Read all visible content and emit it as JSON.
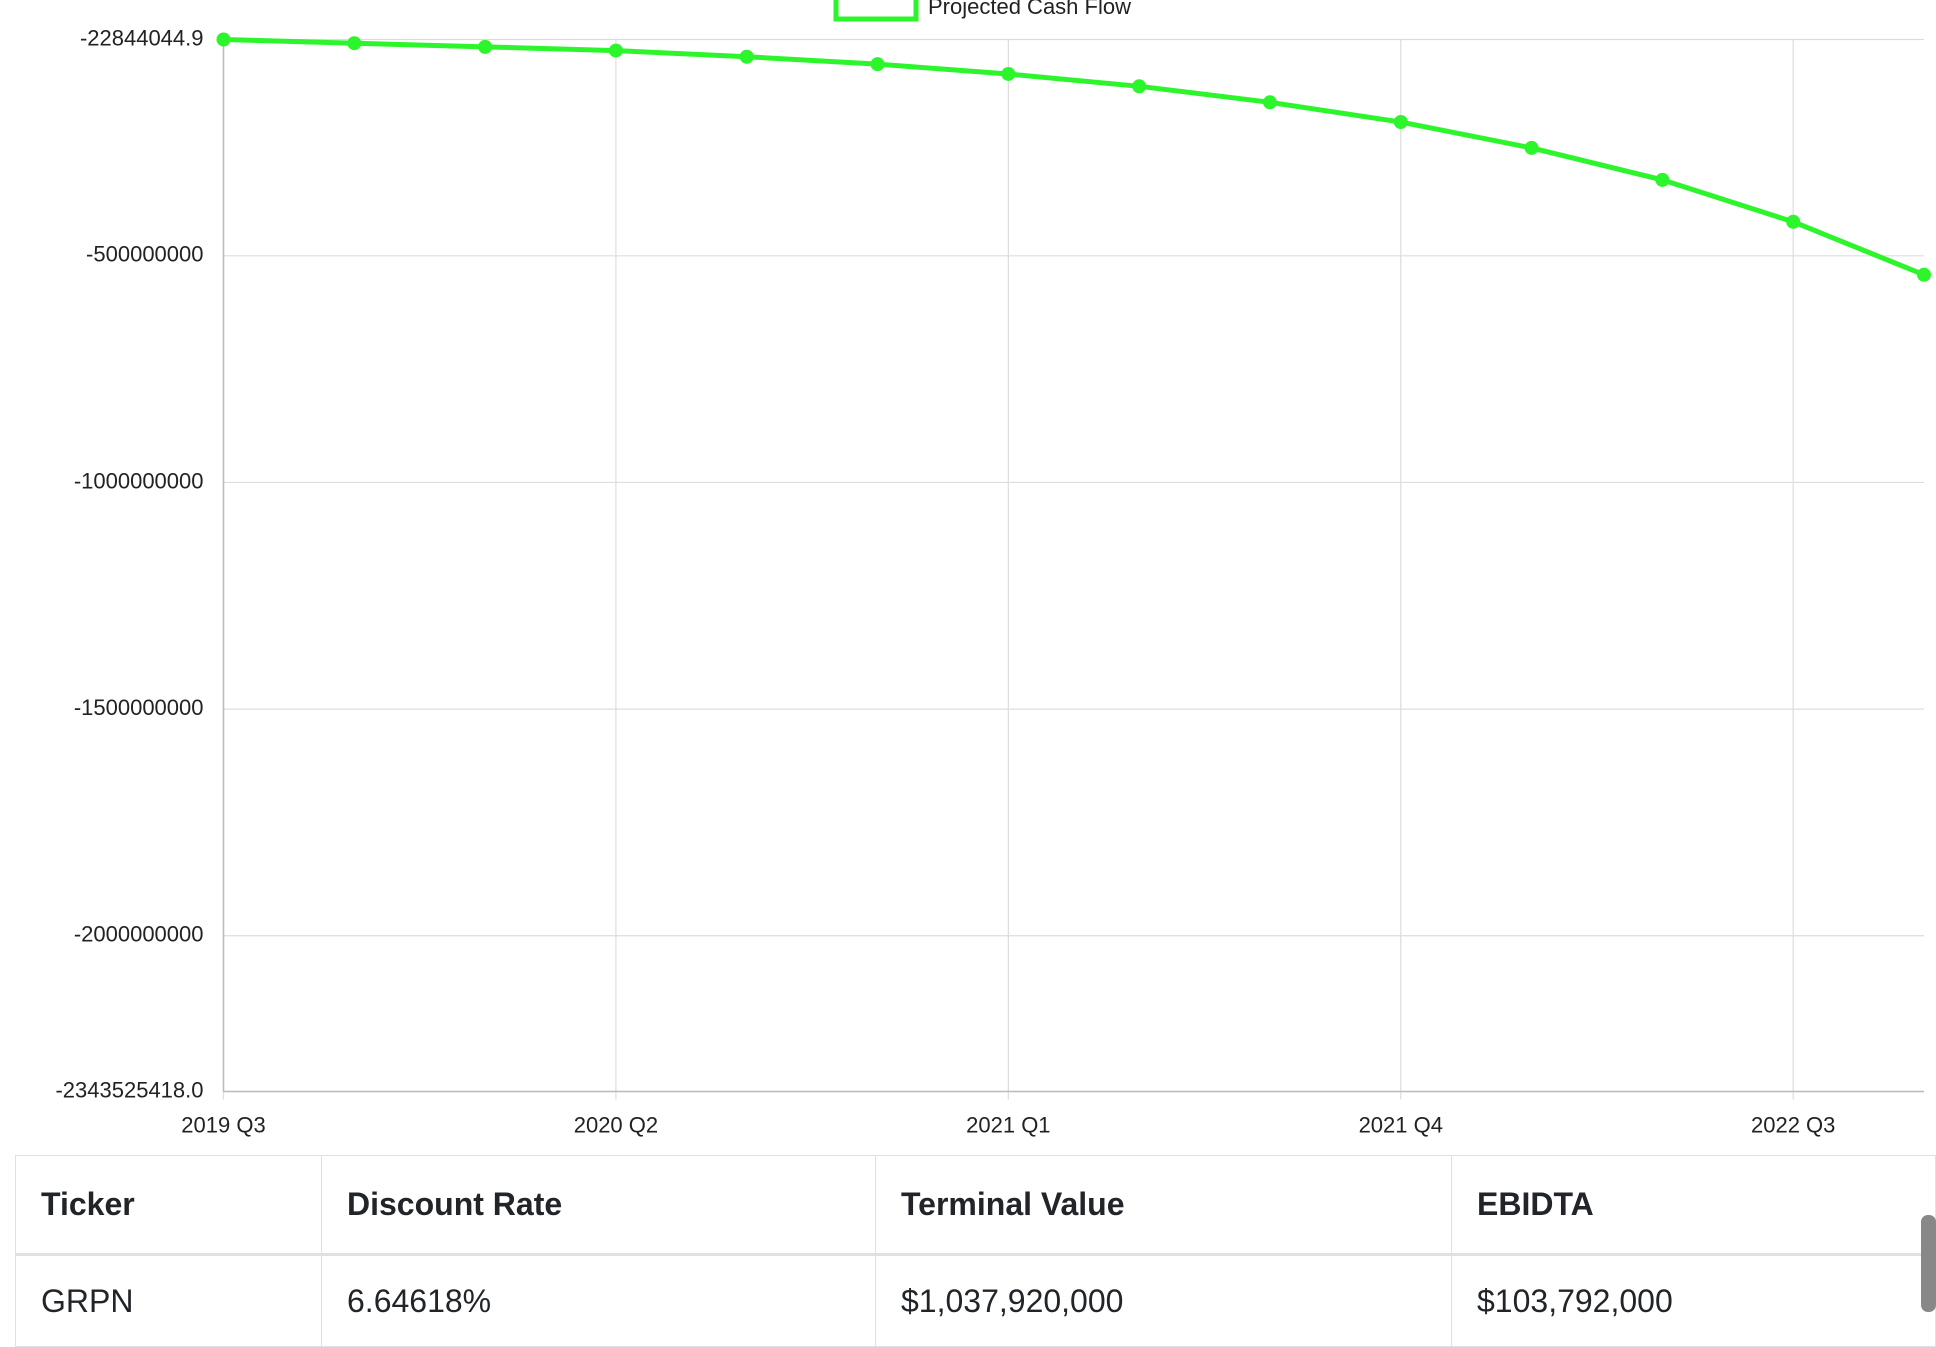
{
  "chart_data": {
    "type": "line",
    "legend": "top",
    "grid": true,
    "categories": [
      "2019 Q3",
      null,
      null,
      "2020 Q2",
      null,
      null,
      "2021 Q1",
      null,
      null,
      "2021 Q4",
      null,
      null,
      "2022 Q3",
      null
    ],
    "series": [
      {
        "name": "Projected Cash Flow",
        "color": "#2cf52c",
        "values": [
          -22844044.9,
          -31000000,
          -39100000,
          -47300000,
          -60900000,
          -77200000,
          -98900000,
          -126100000,
          -161400000,
          -204900000,
          -262000000,
          -332600000,
          -425000000,
          -541900000
        ]
      }
    ],
    "ylim": [
      -2343525418.0,
      -22844044.9
    ],
    "yticks": [
      -22844044.9,
      -500000000,
      -1000000000,
      -1500000000,
      -2000000000,
      {
        "value": -2343525418.0,
        "label": "-2343525418.0"
      }
    ]
  },
  "table": {
    "header": [
      "Ticker",
      "Discount Rate",
      "Terminal Value",
      "EBIDTA"
    ],
    "rows": [
      [
        "GRPN",
        "6.64618%",
        "$1,037,920,000",
        "$103,792,000"
      ]
    ]
  }
}
